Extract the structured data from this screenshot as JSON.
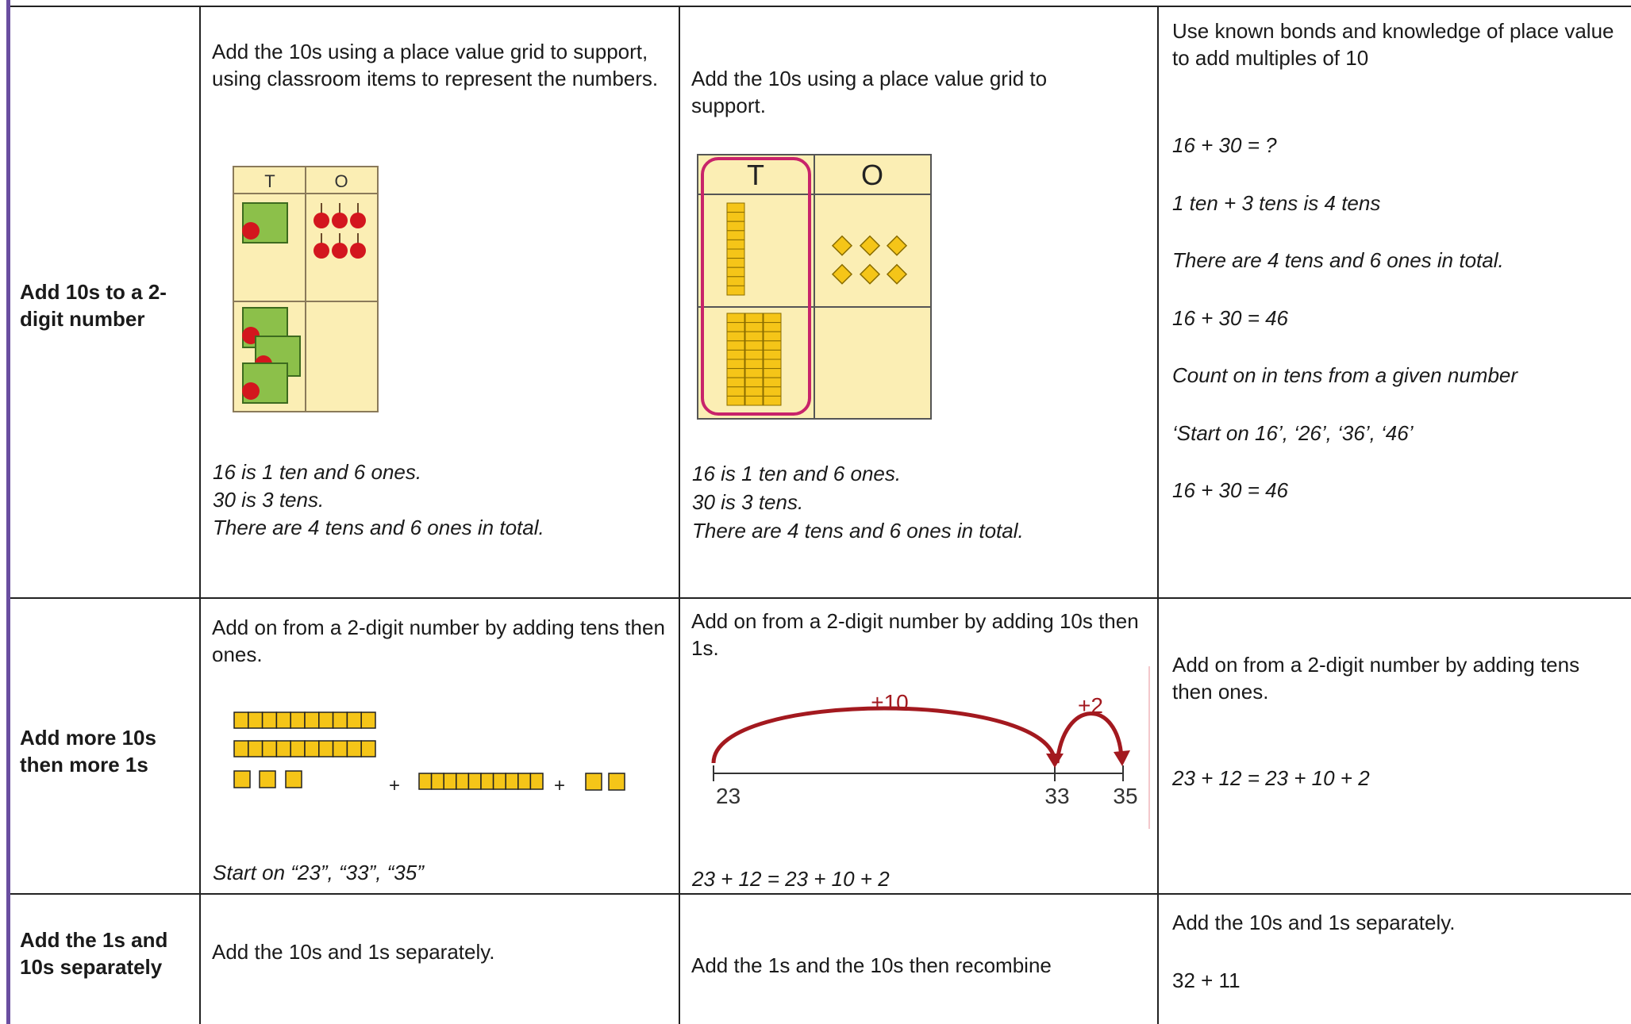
{
  "rows": [
    {
      "label": "Add 10s to a 2-digit number",
      "cells": [
        {
          "text": "Add the 10s using a place value grid to support, using classroom items to represent the numbers.",
          "grid_headers": [
            "T",
            "O"
          ],
          "notes": [
            "16 is 1 ten and 6 ones.",
            "30 is 3 tens.",
            "There are 4 tens and 6 ones in total."
          ]
        },
        {
          "text": "Add the 10s using a place value grid to support.",
          "grid_headers": [
            "T",
            "O"
          ],
          "notes": [
            "16 is 1 ten and 6 ones.",
            "30 is 3 tens.",
            "There are 4 tens and 6 ones in total."
          ]
        },
        {
          "text": "Use known bonds and knowledge of place value to add multiples of 10",
          "notes": [
            "16 + 30 = ?",
            "1 ten + 3 tens is 4 tens",
            "There are 4 tens and 6 ones in total.",
            "16 + 30 = 46",
            "Count on in tens from a given number",
            "‘Start on 16’, ‘26’, ‘36’, ‘46’",
            "16 + 30 = 46"
          ]
        }
      ]
    },
    {
      "label": "Add more 10s then more 1s",
      "cells": [
        {
          "text": "Add on from a 2-digit number by adding tens then ones.",
          "symbols": [
            "+",
            "+"
          ],
          "notes": [
            "Start on “23”, “33”, “35”"
          ]
        },
        {
          "text": "Add on from a 2-digit number by adding 10s then 1s.",
          "jumps": [
            "+10",
            "+2"
          ],
          "points": [
            "23",
            "33",
            "35"
          ],
          "notes": [
            "23 + 12 = 23 + 10 + 2"
          ]
        },
        {
          "text": "Add on from a 2-digit number by adding tens then ones.",
          "notes": [
            "23 + 12 = 23 + 10 + 2"
          ]
        }
      ]
    },
    {
      "label": "Add the 1s and 10s separately",
      "cells": [
        {
          "text": "Add the 10s and 1s separately."
        },
        {
          "text": "Add the 1s and the 10s then recombine"
        },
        {
          "text": "Add the 10s and 1s separately.",
          "notes": [
            "32 + 11"
          ]
        }
      ]
    }
  ]
}
